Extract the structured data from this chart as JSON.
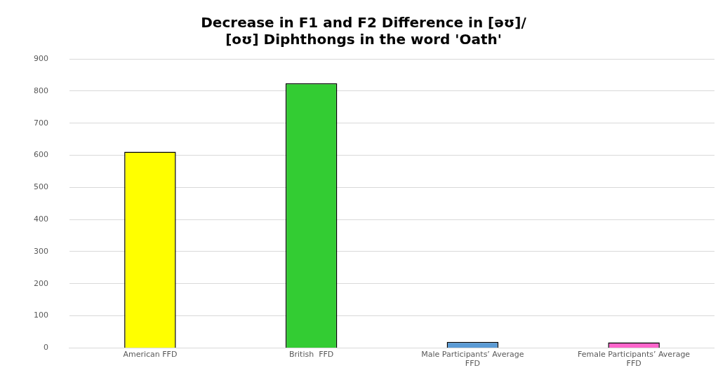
{
  "chart_data": {
    "type": "bar",
    "title": "Decrease in F1 and F2 Difference in [əʊ]/ [oʊ] Diphthongs in the word 'Oath'",
    "categories": [
      "American FFD",
      "British  FFD",
      "Male Participants’ Average FFD",
      "Female Participants’ Average FFD"
    ],
    "values": [
      611,
      824,
      19,
      17
    ],
    "colors": [
      "#ffff00",
      "#33cc33",
      "#5b9bd5",
      "#ff66cc"
    ],
    "ylim": [
      0,
      900
    ],
    "yticks": [
      0,
      100,
      200,
      300,
      400,
      500,
      600,
      700,
      800,
      900
    ],
    "grid": "y",
    "legend": false
  }
}
